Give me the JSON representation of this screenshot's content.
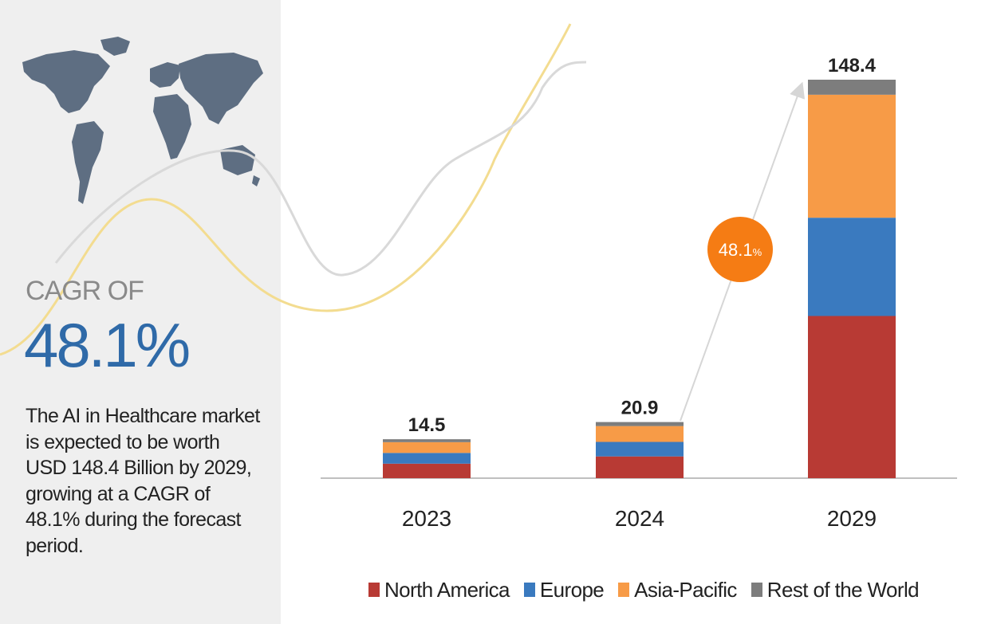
{
  "left": {
    "cagr_label": "CAGR OF",
    "cagr_value": "48.1%",
    "summary": "The AI in Healthcare market is expected to be worth USD 148.4 Billion by 2029, growing at a CAGR of 48.1% during the forecast period."
  },
  "bubble": {
    "value": "48.1",
    "unit": "%"
  },
  "colors": {
    "north_america": "#b83a34",
    "europe": "#3a7abf",
    "asia_pacific": "#f79b47",
    "rest_of_world": "#7d7d7d",
    "bubble": "#f57c14"
  },
  "chart_data": {
    "type": "bar",
    "stacked": true,
    "categories": [
      "2023",
      "2024",
      "2029"
    ],
    "totals": [
      14.5,
      20.9,
      148.4
    ],
    "series": [
      {
        "name": "North America",
        "values": [
          5.4,
          8.1,
          60.4
        ]
      },
      {
        "name": "Europe",
        "values": [
          4.0,
          5.4,
          36.6
        ]
      },
      {
        "name": "Asia-Pacific",
        "values": [
          4.0,
          5.9,
          45.8
        ]
      },
      {
        "name": "Rest of the World",
        "values": [
          1.1,
          1.5,
          5.6
        ]
      }
    ],
    "title": "",
    "xlabel": "",
    "ylabel": "",
    "ylim": [
      0,
      148.4
    ],
    "grid": false,
    "legend": "bottom"
  }
}
